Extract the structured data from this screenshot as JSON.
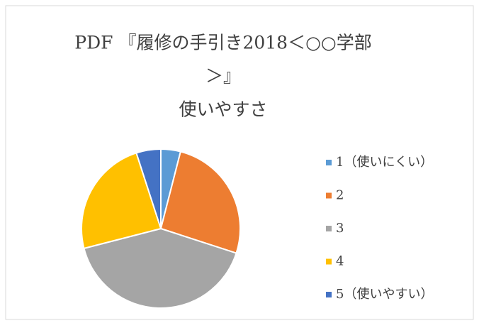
{
  "chart_data": {
    "type": "pie",
    "title": [
      "PDF 『履修の手引き2018＜○○学部",
      "＞』",
      "使いやすさ"
    ],
    "categories": [
      "1（使いにくい）",
      "2",
      "3",
      "4",
      "5（使いやすい）"
    ],
    "values": [
      4,
      26,
      41,
      24,
      5
    ],
    "colors": [
      "#5b9bd5",
      "#ed7d31",
      "#a5a5a5",
      "#ffc000",
      "#4472c4"
    ],
    "legend": "right"
  }
}
